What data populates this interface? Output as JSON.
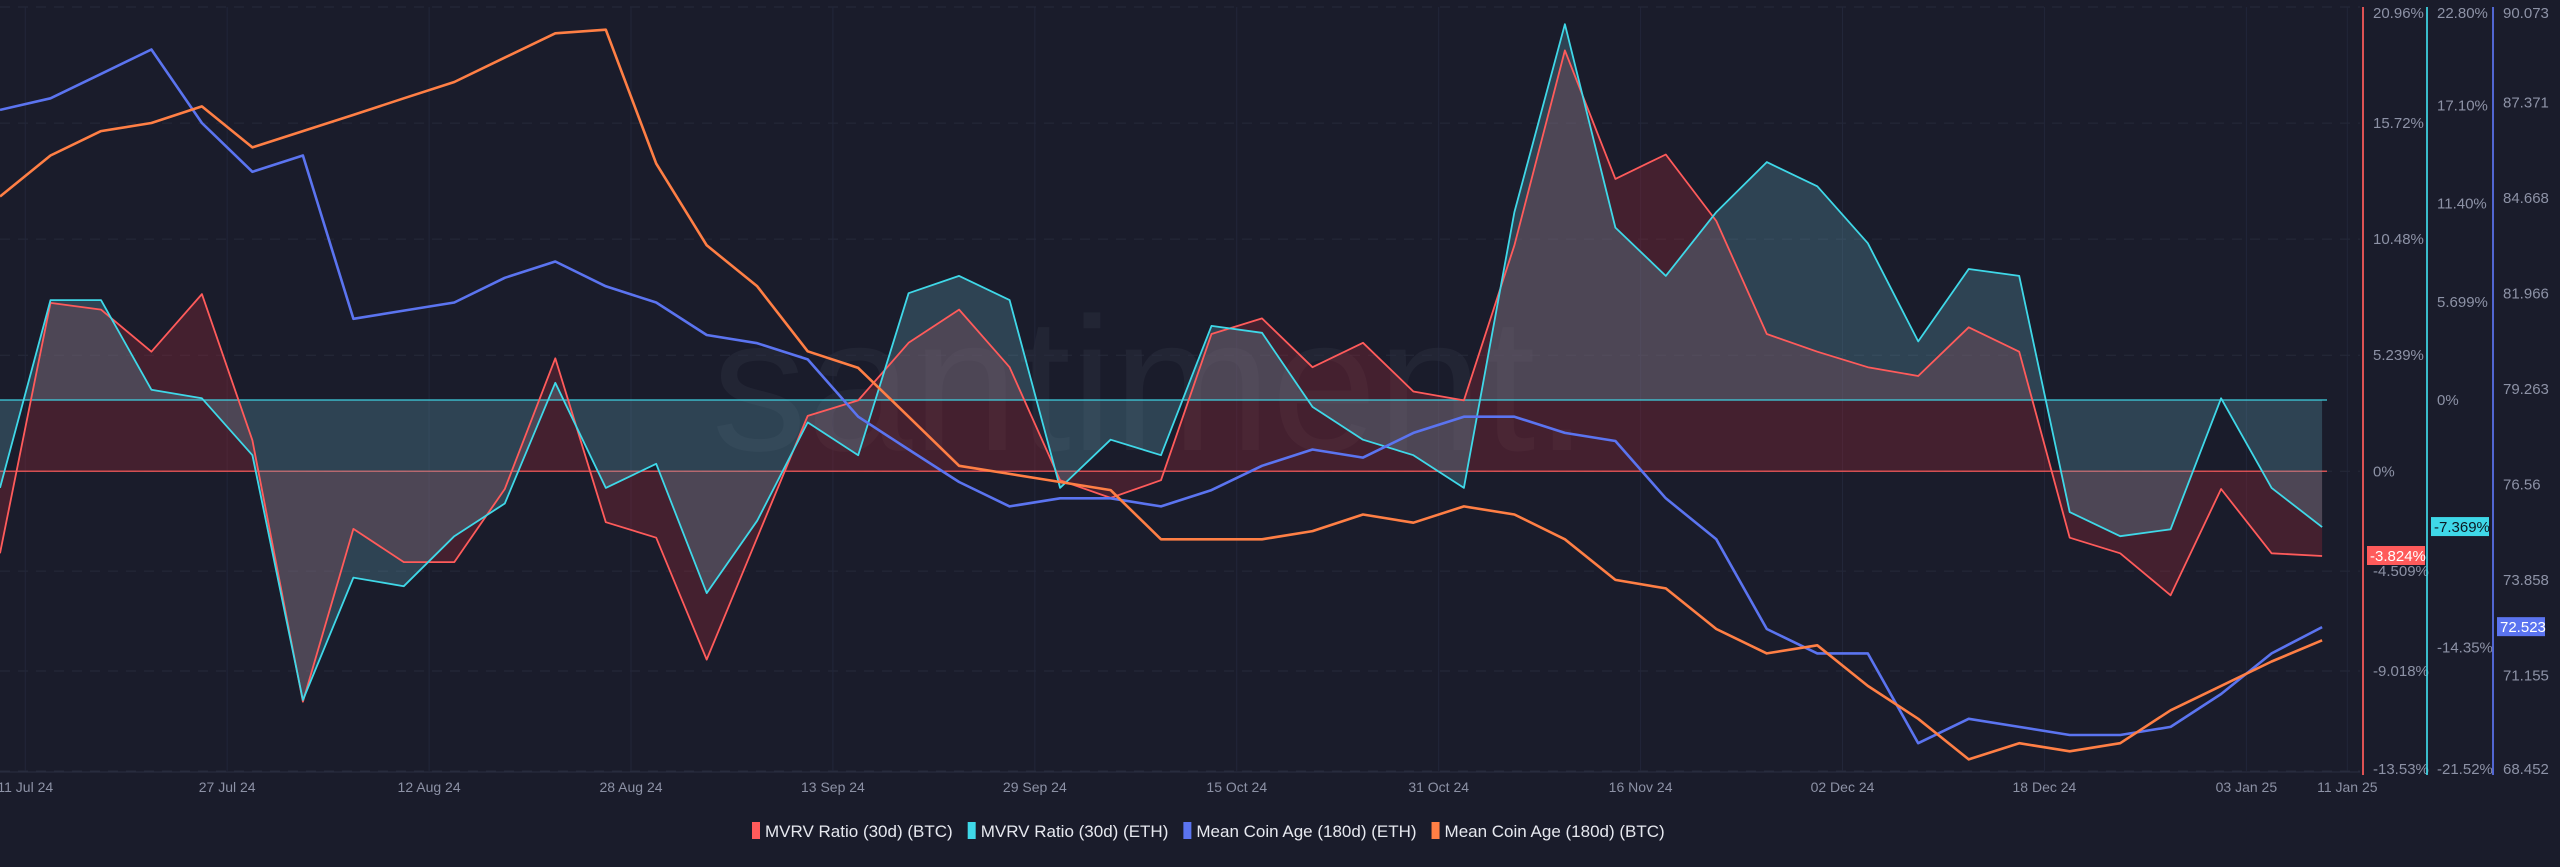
{
  "chart_data": {
    "type": "line",
    "watermark": "santiment.",
    "x": [
      "2024-07-09",
      "2024-07-13",
      "2024-07-17",
      "2024-07-21",
      "2024-07-25",
      "2024-07-29",
      "2024-08-02",
      "2024-08-06",
      "2024-08-10",
      "2024-08-14",
      "2024-08-18",
      "2024-08-22",
      "2024-08-26",
      "2024-08-30",
      "2024-09-03",
      "2024-09-07",
      "2024-09-11",
      "2024-09-15",
      "2024-09-19",
      "2024-09-23",
      "2024-09-27",
      "2024-10-01",
      "2024-10-05",
      "2024-10-09",
      "2024-10-13",
      "2024-10-17",
      "2024-10-21",
      "2024-10-25",
      "2024-10-29",
      "2024-11-02",
      "2024-11-06",
      "2024-11-10",
      "2024-11-14",
      "2024-11-18",
      "2024-11-22",
      "2024-11-26",
      "2024-11-30",
      "2024-12-04",
      "2024-12-08",
      "2024-12-12",
      "2024-12-16",
      "2024-12-20",
      "2024-12-24",
      "2024-12-28",
      "2025-01-01",
      "2025-01-05",
      "2025-01-09"
    ],
    "x_ticks": [
      {
        "date": "2024-07-11",
        "label": "11 Jul 24"
      },
      {
        "date": "2024-07-27",
        "label": "27 Jul 24"
      },
      {
        "date": "2024-08-12",
        "label": "12 Aug 24"
      },
      {
        "date": "2024-08-28",
        "label": "28 Aug 24"
      },
      {
        "date": "2024-09-13",
        "label": "13 Sep 24"
      },
      {
        "date": "2024-09-29",
        "label": "29 Sep 24"
      },
      {
        "date": "2024-10-15",
        "label": "15 Oct 24"
      },
      {
        "date": "2024-10-31",
        "label": "31 Oct 24"
      },
      {
        "date": "2024-11-16",
        "label": "16 Nov 24"
      },
      {
        "date": "2024-12-02",
        "label": "02 Dec 24"
      },
      {
        "date": "2024-12-18",
        "label": "18 Dec 24"
      },
      {
        "date": "2025-01-03",
        "label": "03 Jan 25"
      },
      {
        "date": "2025-01-11",
        "label": "11 Jan 25"
      }
    ],
    "axes": {
      "mvrv_btc": {
        "color": "#ff5b5b",
        "ylim": [
          -13.53,
          20.96
        ],
        "ticks": [
          "20.96%",
          "15.72%",
          "10.48%",
          "5.239%",
          "0%",
          "-4.509%",
          "-9.018%",
          "-13.53%"
        ],
        "tick_values": [
          20.96,
          15.72,
          10.48,
          5.239,
          0,
          -4.509,
          -9.018,
          -13.53
        ]
      },
      "mvrv_eth": {
        "color": "#3fd8e8",
        "ylim": [
          -21.52,
          22.8
        ],
        "ticks": [
          "22.80%",
          "17.10%",
          "11.40%",
          "5.699%",
          "0%",
          "-14.35%",
          "-21.52%"
        ],
        "tick_values": [
          22.8,
          17.1,
          11.4,
          5.699,
          0,
          -14.35,
          -21.52
        ]
      },
      "coin_age": {
        "color": "#5b74f0",
        "ylim": [
          68.452,
          90.073
        ],
        "ticks": [
          "90.073",
          "87.371",
          "84.668",
          "81.966",
          "79.263",
          "76.56",
          "73.858",
          "71.155",
          "68.452"
        ],
        "tick_values": [
          90.073,
          87.371,
          84.668,
          81.966,
          79.263,
          76.56,
          73.858,
          71.155,
          68.452
        ]
      }
    },
    "series": [
      {
        "name": "MVRV Ratio (30d) (BTC)",
        "color": "#ff5b5b",
        "axis": "mvrv_btc",
        "fill": true,
        "last_label": "-3.824%",
        "values": [
          -3.7,
          7.6,
          7.3,
          5.4,
          8.0,
          1.4,
          -10.4,
          -2.6,
          -4.1,
          -4.1,
          -0.8,
          5.1,
          -2.3,
          -3.0,
          -8.5,
          -3.0,
          2.5,
          3.2,
          5.8,
          7.3,
          4.7,
          -0.4,
          -1.2,
          -0.4,
          6.2,
          6.9,
          4.7,
          5.8,
          3.6,
          3.2,
          10.2,
          19.0,
          13.2,
          14.3,
          11.3,
          6.2,
          5.4,
          4.7,
          4.3,
          6.5,
          5.4,
          -3.0,
          -3.7,
          -5.6,
          -0.8,
          -3.7,
          -3.824
        ]
      },
      {
        "name": "MVRV Ratio (30d) (ETH)",
        "color": "#3fd8e8",
        "axis": "mvrv_eth",
        "fill": true,
        "last_label": "-7.369%",
        "values": [
          -5.1,
          5.8,
          5.8,
          0.6,
          0.1,
          -3.2,
          -17.4,
          -10.3,
          -10.8,
          -7.9,
          -6.0,
          1.0,
          -5.1,
          -3.7,
          -11.2,
          -7.0,
          -1.3,
          -3.2,
          6.2,
          7.2,
          5.8,
          -5.1,
          -2.3,
          -3.2,
          4.3,
          3.9,
          -0.4,
          -2.3,
          -3.2,
          -5.1,
          10.9,
          21.8,
          10.0,
          7.2,
          10.9,
          13.8,
          12.4,
          9.1,
          3.4,
          7.6,
          7.2,
          -6.5,
          -7.9,
          -7.5,
          0.1,
          -5.1,
          -7.369
        ]
      },
      {
        "name": "Mean Coin Age (180d) (ETH)",
        "color": "#5b74f0",
        "axis": "coin_age",
        "fill": false,
        "last_label": "72.523",
        "values": [
          87.16,
          87.49,
          88.18,
          88.87,
          86.79,
          85.41,
          85.87,
          81.25,
          81.48,
          81.71,
          82.41,
          82.87,
          82.17,
          81.71,
          80.79,
          80.56,
          80.1,
          78.48,
          77.55,
          76.63,
          75.94,
          76.17,
          76.17,
          75.94,
          76.4,
          77.09,
          77.55,
          77.32,
          78.02,
          78.48,
          78.48,
          78.02,
          77.79,
          76.17,
          75.01,
          72.47,
          71.78,
          71.78,
          69.24,
          69.93,
          69.7,
          69.47,
          69.47,
          69.7,
          70.63,
          71.78,
          72.523
        ]
      },
      {
        "name": "Mean Coin Age (180d) (BTC)",
        "color": "#ff7f45",
        "axis": "coin_age",
        "fill": false,
        "values": [
          84.71,
          85.87,
          86.56,
          86.79,
          87.26,
          86.1,
          86.56,
          87.02,
          87.49,
          87.95,
          88.64,
          89.33,
          89.43,
          85.64,
          83.33,
          82.17,
          80.33,
          79.86,
          78.48,
          77.09,
          76.86,
          76.63,
          76.4,
          75.01,
          75.01,
          75.01,
          75.24,
          75.71,
          75.48,
          75.94,
          75.71,
          75.01,
          73.86,
          73.62,
          72.47,
          71.78,
          72.01,
          70.86,
          69.93,
          68.78,
          69.24,
          69.01,
          69.24,
          70.17,
          70.86,
          71.55,
          72.15
        ]
      }
    ],
    "legend_placement": "bottom-center",
    "grid": true
  }
}
